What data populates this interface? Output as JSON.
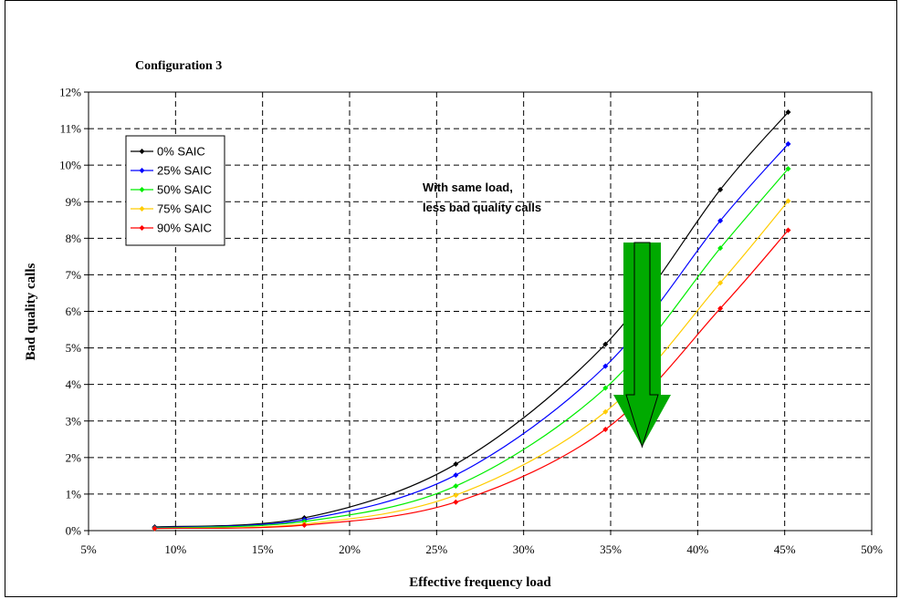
{
  "chart_data": {
    "type": "line",
    "title": "Configuration 3",
    "xlabel": "Effective frequency load",
    "ylabel": "Bad quality calls",
    "xlim": [
      0.05,
      0.5
    ],
    "ylim": [
      0,
      0.12
    ],
    "x_ticks": [
      "5%",
      "10%",
      "15%",
      "20%",
      "25%",
      "30%",
      "35%",
      "40%",
      "45%",
      "50%"
    ],
    "y_ticks": [
      "0%",
      "1%",
      "2%",
      "3%",
      "4%",
      "5%",
      "6%",
      "7%",
      "8%",
      "9%",
      "10%",
      "11%",
      "12%"
    ],
    "grid": true,
    "legend_position": "top-left",
    "x": [
      0.088,
      0.174,
      0.261,
      0.347,
      0.413,
      0.452
    ],
    "series": [
      {
        "name": "0% SAIC",
        "color": "#000000",
        "values": [
          0.001,
          0.0035,
          0.0182,
          0.051,
          0.0933,
          0.1145
        ]
      },
      {
        "name": "25% SAIC",
        "color": "#0000ff",
        "values": [
          0.0008,
          0.003,
          0.0152,
          0.045,
          0.0848,
          0.1058
        ]
      },
      {
        "name": "50% SAIC",
        "color": "#00ee00",
        "values": [
          0.0007,
          0.0025,
          0.0122,
          0.039,
          0.0773,
          0.099
        ]
      },
      {
        "name": "75% SAIC",
        "color": "#ffcc00",
        "values": [
          0.0006,
          0.0018,
          0.0097,
          0.0325,
          0.0678,
          0.0902
        ]
      },
      {
        "name": "90% SAIC",
        "color": "#ff0000",
        "values": [
          0.0006,
          0.0015,
          0.0078,
          0.0277,
          0.0608,
          0.0822
        ]
      }
    ],
    "annotation": {
      "lines": [
        "With same load,",
        "less bad quality calls"
      ],
      "arrow_color": "#00aa00",
      "arrow_direction": "down"
    }
  }
}
